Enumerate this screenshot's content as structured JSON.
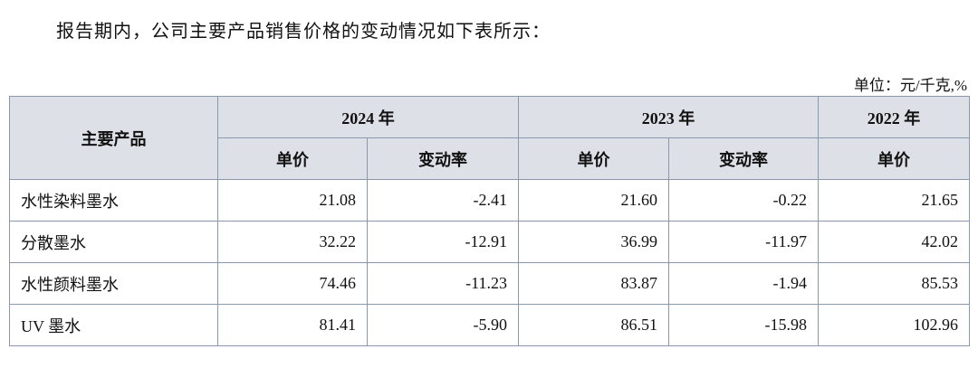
{
  "intro": "报告期内，公司主要产品销售价格的变动情况如下表所示：",
  "unit": "单位：元/千克,%",
  "table": {
    "row_header": "主要产品",
    "years": [
      "2024 年",
      "2023 年",
      "2022 年"
    ],
    "subheaders": [
      "单价",
      "变动率",
      "单价",
      "变动率",
      "单价"
    ],
    "rows": [
      [
        "水性染料墨水",
        "21.08",
        "-2.41",
        "21.60",
        "-0.22",
        "21.65"
      ],
      [
        "分散墨水",
        "32.22",
        "-12.91",
        "36.99",
        "-11.97",
        "42.02"
      ],
      [
        "水性颜料墨水",
        "74.46",
        "-11.23",
        "83.87",
        "-1.94",
        "85.53"
      ],
      [
        "UV 墨水",
        "81.41",
        "-5.90",
        "86.51",
        "-15.98",
        "102.96"
      ]
    ]
  }
}
